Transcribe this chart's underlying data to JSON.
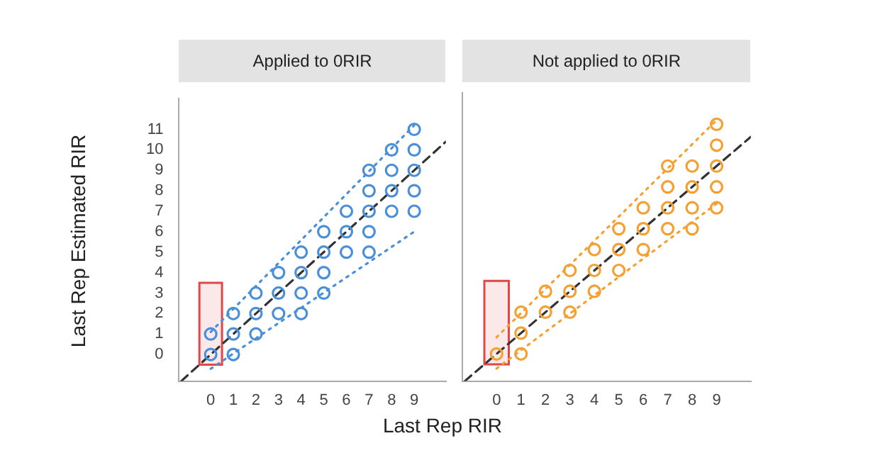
{
  "chart_data": [
    {
      "type": "scatter",
      "title": "Applied to 0RIR",
      "xlabel": "Last Rep RIR",
      "ylabel": "Last Rep Estimated RIR",
      "xlim": [
        -1.4,
        10.4
      ],
      "ylim": [
        -1.3,
        12.5
      ],
      "xticks": [
        0,
        1,
        2,
        3,
        4,
        5,
        6,
        7,
        8,
        9
      ],
      "yticks": [
        0,
        1,
        2,
        3,
        4,
        5,
        6,
        7,
        8,
        9,
        10,
        11
      ],
      "grid": false,
      "legend": false,
      "bands": [
        {
          "axis": "x",
          "from": -0.5,
          "to": 0.5,
          "color": "#e04848"
        }
      ],
      "series": [
        {
          "marker": "circle",
          "color": "#4a90d9",
          "x": [
            0,
            0,
            1,
            1,
            1,
            2,
            2,
            2,
            3,
            3,
            3,
            4,
            4,
            4,
            4,
            5,
            5,
            5,
            5,
            6,
            6,
            6,
            7,
            7,
            7,
            7,
            7,
            8,
            8,
            8,
            8,
            9,
            9,
            9,
            9,
            9
          ],
          "values": [
            0,
            1,
            0,
            1,
            2,
            1,
            2,
            3,
            2,
            3,
            4,
            2,
            3,
            4,
            5,
            3,
            4,
            5,
            6,
            5,
            6,
            7,
            5,
            6,
            7,
            8,
            9,
            7,
            8,
            9,
            10,
            7,
            8,
            9,
            10,
            11
          ]
        },
        {
          "type": "line",
          "marker": "none",
          "color": "#4a90d9",
          "line_style": "dotted",
          "x": [
            0,
            9
          ],
          "values": [
            1.1,
            11.2
          ]
        },
        {
          "type": "line",
          "marker": "none",
          "color": "#4a90d9",
          "line_style": "dotted",
          "x": [
            0,
            9
          ],
          "values": [
            -0.7,
            6
          ]
        },
        {
          "type": "line",
          "marker": "none",
          "color": "#333333",
          "line_style": "dashed",
          "x": [
            -1.3,
            10.4
          ],
          "values": [
            -1.3,
            10.4
          ]
        }
      ]
    },
    {
      "type": "scatter",
      "title": "Not applied to 0RIR",
      "xlim": [
        -1.4,
        10.4
      ],
      "ylim": [
        -1.3,
        12.5
      ],
      "xticks": [
        0,
        1,
        2,
        3,
        4,
        5,
        6,
        7,
        8,
        9
      ],
      "yticks": [
        0,
        1,
        2,
        3,
        4,
        5,
        6,
        7,
        8,
        9,
        10,
        11
      ],
      "tick_labels": "x",
      "grid": false,
      "legend": false,
      "bands": [
        {
          "axis": "x",
          "from": -0.5,
          "to": 0.5,
          "color": "#e04848"
        }
      ],
      "series": [
        {
          "marker": "circle",
          "color": "#f5a030",
          "x": [
            0,
            1,
            1,
            1,
            2,
            2,
            3,
            3,
            3,
            4,
            4,
            4,
            5,
            5,
            5,
            6,
            6,
            6,
            7,
            7,
            7,
            7,
            8,
            8,
            8,
            8,
            9,
            9,
            9,
            9,
            9
          ],
          "values": [
            0,
            0,
            1,
            2,
            2,
            3,
            2,
            3,
            4,
            3,
            4,
            5,
            4,
            5,
            6,
            5,
            6,
            7,
            6,
            7,
            8,
            9,
            6,
            7,
            8,
            9,
            7,
            8,
            9,
            10,
            11
          ]
        },
        {
          "type": "line",
          "marker": "none",
          "color": "#f5a030",
          "line_style": "dotted",
          "x": [
            0,
            9
          ],
          "values": [
            0.8,
            11.2
          ]
        },
        {
          "type": "line",
          "marker": "none",
          "color": "#f5a030",
          "line_style": "dotted",
          "x": [
            0,
            9
          ],
          "values": [
            -0.7,
            7.2
          ]
        },
        {
          "type": "line",
          "marker": "none",
          "color": "#333333",
          "line_style": "dashed",
          "x": [
            -1.3,
            10.4
          ],
          "values": [
            -1.3,
            10.4
          ]
        }
      ]
    }
  ]
}
